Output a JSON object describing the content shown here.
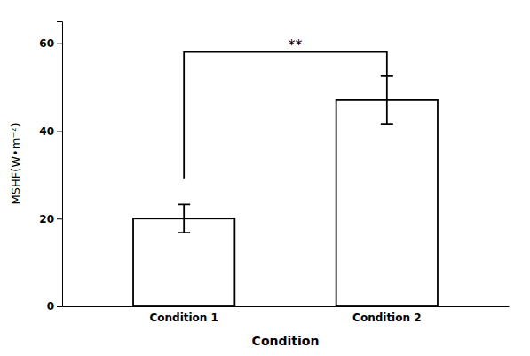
{
  "chart_data": {
    "type": "bar",
    "categories": [
      "Condition 1",
      "Condition 2"
    ],
    "values": [
      20.0,
      47.0
    ],
    "errors": [
      3.2,
      5.5
    ],
    "color": "white",
    "xlabel": "Condition",
    "ylabel": "MSHF(W•m⁻²)",
    "ylim": [
      0,
      65
    ],
    "yticks": [
      0,
      20,
      40,
      60
    ],
    "grid": false,
    "annotations": [
      {
        "text": "**",
        "between": [
          "Condition 1",
          "Condition 2"
        ],
        "y": 58.0,
        "y_left": 29.0,
        "y_right": 52.5
      }
    ]
  }
}
